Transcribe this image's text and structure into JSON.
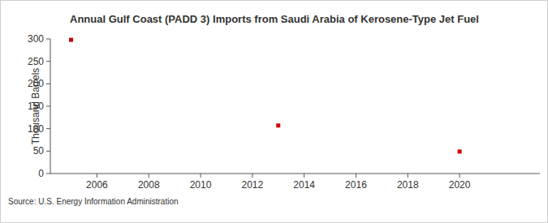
{
  "chart_data": {
    "type": "scatter",
    "title": "Annual Gulf Coast (PADD 3) Imports from Saudi Arabia of Kerosene-Type Jet Fuel",
    "y_label": "Thousand Barrels",
    "source": "Source: U.S. Energy Information Administration",
    "x": [
      2005,
      2013,
      2020
    ],
    "values": [
      298,
      107,
      49
    ],
    "color": "#cc0000",
    "marker": "square",
    "xlim": [
      2004.2,
      2023.1
    ],
    "xticks": [
      2006,
      2008,
      2010,
      2012,
      2014,
      2016,
      2018,
      2020
    ],
    "ylim": [
      0,
      300
    ],
    "yticks": [
      0,
      50,
      100,
      150,
      200,
      250,
      300
    ],
    "grid": false
  }
}
